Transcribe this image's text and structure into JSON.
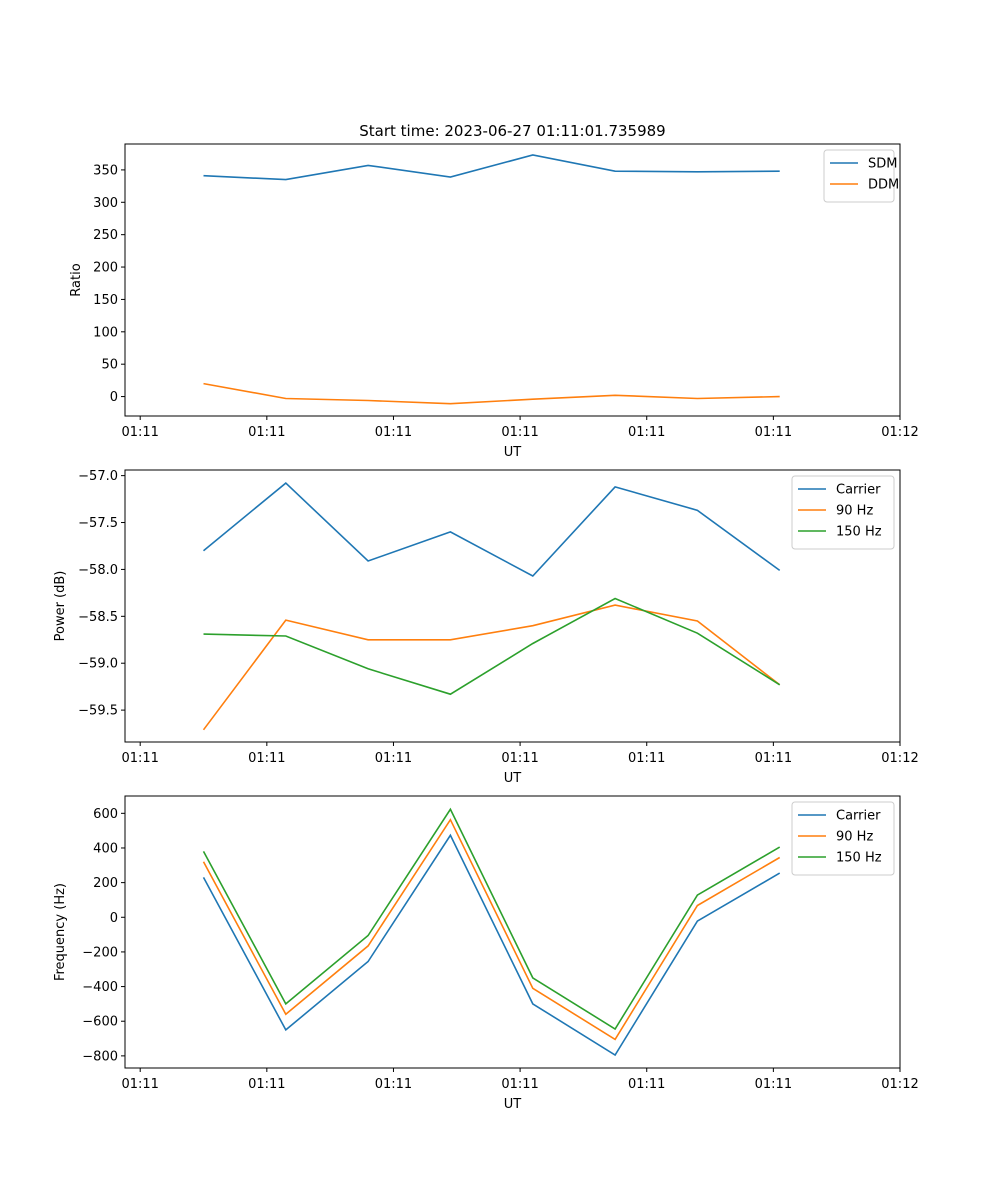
{
  "figure": {
    "title": "Start time: 2023-06-27 01:11:01.735989"
  },
  "colors": {
    "blue": "#1f77b4",
    "orange": "#ff7f0e",
    "green": "#2ca02c",
    "axis": "#000000",
    "legend_border": "#cccccc"
  },
  "chart_data": [
    {
      "type": "line",
      "title": "Start time: 2023-06-27 01:11:01.735989",
      "xlabel": "UT",
      "ylabel": "Ratio",
      "x_tick_labels": [
        "01:11",
        "01:11",
        "01:11",
        "01:11",
        "01:11",
        "01:11",
        "01:12"
      ],
      "x": [
        0.5,
        1.15,
        1.8,
        2.45,
        3.1,
        3.75,
        4.4,
        5.05
      ],
      "xlim": [
        -0.12,
        6.0
      ],
      "ylim": [
        -30,
        390
      ],
      "y_ticks": [
        0,
        50,
        100,
        150,
        200,
        250,
        300,
        350
      ],
      "legend": "top-right",
      "grid": false,
      "series": [
        {
          "name": "SDM",
          "color": "#1f77b4",
          "values": [
            341,
            335,
            357,
            339,
            373,
            348,
            347,
            348
          ]
        },
        {
          "name": "DDM",
          "color": "#ff7f0e",
          "values": [
            20,
            -3,
            -6,
            -11,
            -4,
            2,
            -3,
            0
          ]
        }
      ]
    },
    {
      "type": "line",
      "title": "",
      "xlabel": "UT",
      "ylabel": "Power (dB)",
      "x_tick_labels": [
        "01:11",
        "01:11",
        "01:11",
        "01:11",
        "01:11",
        "01:11",
        "01:12"
      ],
      "x": [
        0.5,
        1.15,
        1.8,
        2.45,
        3.1,
        3.75,
        4.4,
        5.05
      ],
      "xlim": [
        -0.12,
        6.0
      ],
      "ylim": [
        -59.84,
        -56.94
      ],
      "y_ticks": [
        -59.5,
        -59.0,
        -58.5,
        -58.0,
        -57.5,
        -57.0
      ],
      "y_tick_labels": [
        "−59.5",
        "−59.0",
        "−58.5",
        "−58.0",
        "−57.5",
        "−57.0"
      ],
      "legend": "top-right",
      "grid": false,
      "series": [
        {
          "name": "Carrier",
          "color": "#1f77b4",
          "values": [
            -57.8,
            -57.08,
            -57.91,
            -57.6,
            -58.07,
            -57.12,
            -57.37,
            -58.01
          ]
        },
        {
          "name": "90 Hz",
          "color": "#ff7f0e",
          "values": [
            -59.71,
            -58.54,
            -58.75,
            -58.75,
            -58.6,
            -58.38,
            -58.55,
            -59.23
          ]
        },
        {
          "name": "150 Hz",
          "color": "#2ca02c",
          "values": [
            -58.69,
            -58.71,
            -59.06,
            -59.33,
            -58.79,
            -58.31,
            -58.68,
            -59.23
          ]
        }
      ]
    },
    {
      "type": "line",
      "title": "",
      "xlabel": "UT",
      "ylabel": "Frequency (Hz)",
      "x_tick_labels": [
        "01:11",
        "01:11",
        "01:11",
        "01:11",
        "01:11",
        "01:11",
        "01:12"
      ],
      "x": [
        0.5,
        1.15,
        1.8,
        2.45,
        3.1,
        3.75,
        4.4,
        5.05
      ],
      "xlim": [
        -0.12,
        6.0
      ],
      "ylim": [
        -870,
        700
      ],
      "y_ticks": [
        -800,
        -600,
        -400,
        -200,
        0,
        200,
        400,
        600
      ],
      "y_tick_labels": [
        "−800",
        "−600",
        "−400",
        "−200",
        "0",
        "200",
        "400",
        "600"
      ],
      "legend": "top-right",
      "grid": false,
      "series": [
        {
          "name": "Carrier",
          "color": "#1f77b4",
          "values": [
            230,
            -650,
            -255,
            473,
            -500,
            -795,
            -22,
            255
          ]
        },
        {
          "name": "90 Hz",
          "color": "#ff7f0e",
          "values": [
            320,
            -560,
            -165,
            563,
            -410,
            -705,
            68,
            345
          ]
        },
        {
          "name": "150 Hz",
          "color": "#2ca02c",
          "values": [
            380,
            -500,
            -105,
            623,
            -350,
            -645,
            128,
            405
          ]
        }
      ]
    }
  ]
}
